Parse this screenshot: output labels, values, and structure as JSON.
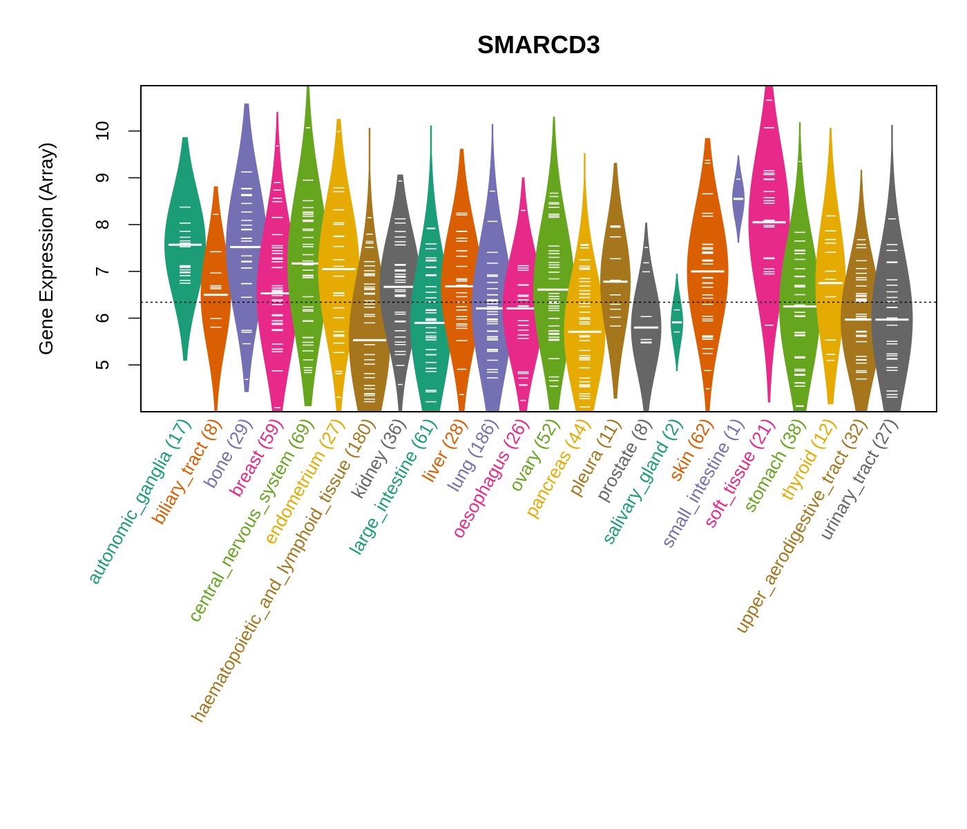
{
  "chart_data": {
    "type": "violin",
    "title": "SMARCD3",
    "xlabel": "",
    "ylabel": "Gene Expression (Array)",
    "ylim": [
      4.0,
      10.97
    ],
    "yticks": [
      5,
      6,
      7,
      8,
      9,
      10
    ],
    "reference_line": 6.34,
    "grid": false,
    "legend": "none",
    "categories": [
      {
        "name": "autonomic_ganglia",
        "n": 17,
        "label": "autonomic_ganglia (17)",
        "color": "#1B9E77",
        "min": 5.09,
        "max": 9.87,
        "median": 7.57
      },
      {
        "name": "biliary_tract",
        "n": 8,
        "label": "biliary_tract (8)",
        "color": "#D95F02",
        "min": 4.0,
        "max": 8.82,
        "median": 6.5
      },
      {
        "name": "bone",
        "n": 29,
        "label": "bone (29)",
        "color": "#7570B3",
        "min": 4.42,
        "max": 10.59,
        "median": 7.52
      },
      {
        "name": "breast",
        "n": 59,
        "label": "breast (59)",
        "color": "#E7298A",
        "min": 4.0,
        "max": 10.41,
        "median": 6.53
      },
      {
        "name": "central_nervous_system",
        "n": 69,
        "label": "central_nervous_system (69)",
        "color": "#66A61E",
        "min": 4.12,
        "max": 10.97,
        "median": 7.17
      },
      {
        "name": "endometrium",
        "n": 27,
        "label": "endometrium (27)",
        "color": "#E6AB02",
        "min": 4.0,
        "max": 10.26,
        "median": 7.05
      },
      {
        "name": "haematopoietic_and_lymphoid_tissue",
        "n": 180,
        "label": "haematopoietic_and_lymphoid_tissue (180)",
        "color": "#A6761D",
        "min": 4.0,
        "max": 10.07,
        "median": 5.53
      },
      {
        "name": "kidney",
        "n": 36,
        "label": "kidney (36)",
        "color": "#666666",
        "min": 4.0,
        "max": 9.07,
        "median": 6.67
      },
      {
        "name": "large_intestine",
        "n": 61,
        "label": "large_intestine (61)",
        "color": "#1B9E77",
        "min": 4.0,
        "max": 10.12,
        "median": 5.9
      },
      {
        "name": "liver",
        "n": 28,
        "label": "liver (28)",
        "color": "#D95F02",
        "min": 4.0,
        "max": 9.62,
        "median": 6.68
      },
      {
        "name": "lung",
        "n": 186,
        "label": "lung (186)",
        "color": "#7570B3",
        "min": 4.0,
        "max": 10.15,
        "median": 6.21
      },
      {
        "name": "oesophagus",
        "n": 26,
        "label": "oesophagus (26)",
        "color": "#E7298A",
        "min": 4.0,
        "max": 9.01,
        "median": 6.21
      },
      {
        "name": "ovary",
        "n": 52,
        "label": "ovary (52)",
        "color": "#66A61E",
        "min": 4.04,
        "max": 10.31,
        "median": 6.61
      },
      {
        "name": "pancreas",
        "n": 44,
        "label": "pancreas (44)",
        "color": "#E6AB02",
        "min": 4.0,
        "max": 9.53,
        "median": 5.71
      },
      {
        "name": "pleura",
        "n": 11,
        "label": "pleura (11)",
        "color": "#A6761D",
        "min": 4.28,
        "max": 9.32,
        "median": 6.78
      },
      {
        "name": "prostate",
        "n": 8,
        "label": "prostate (8)",
        "color": "#666666",
        "min": 4.0,
        "max": 8.04,
        "median": 5.8
      },
      {
        "name": "salivary_gland",
        "n": 2,
        "label": "salivary_gland (2)",
        "color": "#1B9E77",
        "min": 4.87,
        "max": 6.95,
        "median": 5.91
      },
      {
        "name": "skin",
        "n": 62,
        "label": "skin (62)",
        "color": "#D95F02",
        "min": 4.0,
        "max": 9.85,
        "median": 7.0
      },
      {
        "name": "small_intestine",
        "n": 1,
        "label": "small_intestine (1)",
        "color": "#7570B3",
        "min": 7.61,
        "max": 9.48,
        "median": 8.55
      },
      {
        "name": "soft_tissue",
        "n": 21,
        "label": "soft_tissue (21)",
        "color": "#E7298A",
        "min": 4.2,
        "max": 10.97,
        "median": 8.05
      },
      {
        "name": "stomach",
        "n": 38,
        "label": "stomach (38)",
        "color": "#66A61E",
        "min": 4.0,
        "max": 10.19,
        "median": 6.25
      },
      {
        "name": "thyroid",
        "n": 12,
        "label": "thyroid (12)",
        "color": "#E6AB02",
        "min": 4.16,
        "max": 10.07,
        "median": 6.75
      },
      {
        "name": "upper_aerodigestive_tract",
        "n": 32,
        "label": "upper_aerodigestive_tract (32)",
        "color": "#A6761D",
        "min": 4.0,
        "max": 9.17,
        "median": 5.97
      },
      {
        "name": "urinary_tract",
        "n": 27,
        "label": "urinary_tract (27)",
        "color": "#666666",
        "min": 4.0,
        "max": 10.13,
        "median": 5.97
      }
    ]
  }
}
